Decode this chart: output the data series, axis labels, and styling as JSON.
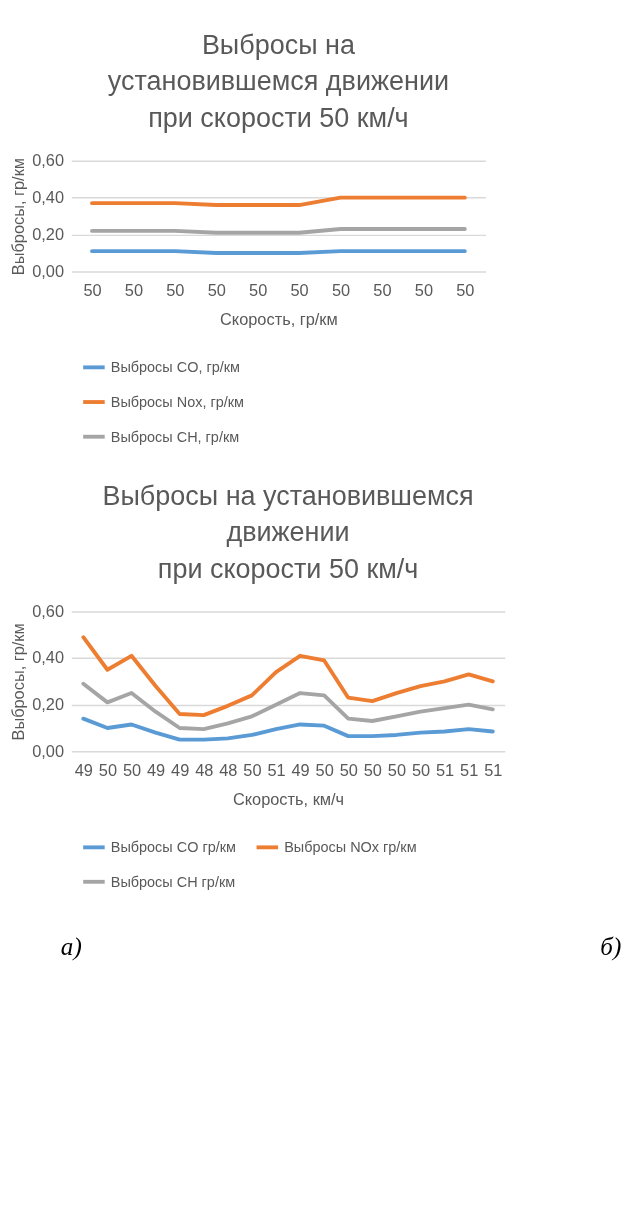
{
  "chart_data": [
    {
      "type": "line",
      "title": "Выбросы на\nустановившемся движении\nпри скорости 50 км/ч",
      "xlabel": "Скорость, гр/км",
      "ylabel": "Выбросы, гр/км",
      "categories": [
        "50",
        "50",
        "50",
        "50",
        "50",
        "50",
        "50",
        "50",
        "50",
        "50"
      ],
      "series": [
        {
          "name": "Выбросы CO, гр/км",
          "color": "#5b9bd5",
          "values": [
            0.11,
            0.11,
            0.11,
            0.1,
            0.1,
            0.1,
            0.11,
            0.11,
            0.11,
            0.11
          ]
        },
        {
          "name": "Выбросы Nox, гр/км",
          "color": "#ed7d31",
          "values": [
            0.37,
            0.37,
            0.37,
            0.36,
            0.36,
            0.36,
            0.4,
            0.4,
            0.4,
            0.4
          ]
        },
        {
          "name": "Выбросы CH, гр/км",
          "color": "#a5a5a5",
          "values": [
            0.22,
            0.22,
            0.22,
            0.21,
            0.21,
            0.21,
            0.23,
            0.23,
            0.23,
            0.23
          ]
        }
      ],
      "ylim": [
        0,
        0.6
      ],
      "yticks": [
        {
          "value": 0,
          "label": "0,00"
        },
        {
          "value": 0.2,
          "label": "0,20"
        },
        {
          "value": 0.4,
          "label": "0,40"
        },
        {
          "value": 0.6,
          "label": "0,60"
        }
      ],
      "grid": "y",
      "legend": "bottom"
    },
    {
      "type": "line",
      "title": "Выбросы на установившемся\nдвижении\nпри скорости 50 км/ч",
      "xlabel": "Скорость, км/ч",
      "ylabel": "Выбросы, гр/км",
      "categories": [
        "49",
        "50",
        "50",
        "49",
        "49",
        "48",
        "48",
        "50",
        "51",
        "49",
        "50",
        "50",
        "50",
        "50",
        "50",
        "51",
        "51",
        "51"
      ],
      "series": [
        {
          "name": "Выбросы CO гр/км",
          "color": "#5b9bd5",
          "values": [
            0.14,
            0.1,
            0.115,
            0.08,
            0.05,
            0.05,
            0.055,
            0.07,
            0.095,
            0.115,
            0.11,
            0.065,
            0.065,
            0.07,
            0.08,
            0.085,
            0.095,
            0.085
          ]
        },
        {
          "name": "Выбросы NOx гр/км",
          "color": "#ed7d31",
          "values": [
            0.49,
            0.35,
            0.41,
            0.28,
            0.16,
            0.155,
            0.195,
            0.24,
            0.34,
            0.41,
            0.39,
            0.23,
            0.215,
            0.25,
            0.28,
            0.3,
            0.33,
            0.3
          ]
        },
        {
          "name": "Выбросы CH гр/км",
          "color": "#a5a5a5",
          "values": [
            0.29,
            0.21,
            0.25,
            0.17,
            0.1,
            0.095,
            0.12,
            0.15,
            0.2,
            0.25,
            0.24,
            0.14,
            0.13,
            0.15,
            0.17,
            0.185,
            0.2,
            0.18
          ]
        }
      ],
      "ylim": [
        0,
        0.6
      ],
      "yticks": [
        {
          "value": 0,
          "label": "0,00"
        },
        {
          "value": 0.2,
          "label": "0,20"
        },
        {
          "value": 0.4,
          "label": "0,40"
        },
        {
          "value": 0.6,
          "label": "0,60"
        }
      ],
      "grid": "y",
      "legend": "bottom",
      "annotations": [
        "а)",
        "б)"
      ]
    }
  ]
}
